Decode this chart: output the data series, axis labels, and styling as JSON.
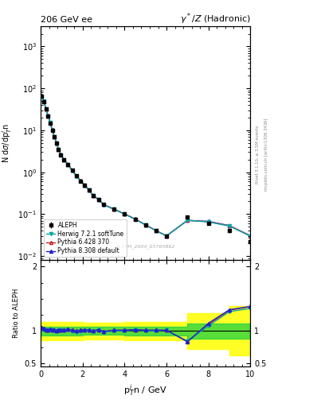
{
  "title_left": "206 GeV ee",
  "title_right": "γ*/Z (Hadronic)",
  "xlabel": "p$_T^i$n / GeV",
  "ylabel_main": "N dσ/dp$_T^i$n",
  "ylabel_ratio": "Ratio to ALEPH",
  "watermark": "ALEPH_2004_S5765862",
  "right_labels": [
    "mcplots.cern.ch [arXiv:1306.3436]",
    "Rivet 3.1.10, ≥ 3.5M events"
  ],
  "x_data": [
    0.05,
    0.15,
    0.25,
    0.35,
    0.45,
    0.55,
    0.65,
    0.75,
    0.85,
    0.95,
    1.1,
    1.3,
    1.5,
    1.7,
    1.9,
    2.1,
    2.3,
    2.5,
    2.75,
    3.0,
    3.5,
    4.0,
    4.5,
    5.0,
    5.5,
    6.0,
    7.0,
    8.0,
    9.0,
    10.0
  ],
  "aleph_y": [
    65.0,
    48.0,
    32.0,
    22.0,
    15.0,
    10.0,
    7.0,
    5.0,
    3.5,
    2.6,
    2.0,
    1.5,
    1.1,
    0.82,
    0.62,
    0.48,
    0.37,
    0.28,
    0.22,
    0.17,
    0.13,
    0.1,
    0.075,
    0.055,
    0.04,
    0.03,
    0.085,
    0.06,
    0.04,
    0.022
  ],
  "aleph_yerr": [
    2.0,
    2.0,
    1.5,
    1.0,
    0.8,
    0.5,
    0.3,
    0.2,
    0.15,
    0.12,
    0.09,
    0.07,
    0.05,
    0.04,
    0.03,
    0.025,
    0.02,
    0.015,
    0.012,
    0.01,
    0.008,
    0.006,
    0.005,
    0.004,
    0.003,
    0.003,
    0.006,
    0.005,
    0.004,
    0.003
  ],
  "herwig_ratio": [
    1.02,
    1.03,
    1.01,
    1.0,
    1.02,
    1.01,
    1.0,
    0.99,
    1.0,
    1.01,
    1.0,
    1.02,
    0.99,
    0.98,
    0.99,
    1.0,
    1.0,
    0.99,
    1.01,
    0.98,
    1.0,
    1.0,
    1.01,
    1.0,
    1.0,
    1.01,
    0.84,
    1.08,
    1.3,
    1.35
  ],
  "pythia6_ratio": [
    1.05,
    1.04,
    1.02,
    1.01,
    1.03,
    1.02,
    1.01,
    1.0,
    1.01,
    1.02,
    1.01,
    1.03,
    1.01,
    1.0,
    1.01,
    1.02,
    1.01,
    1.0,
    1.02,
    0.99,
    1.01,
    1.01,
    1.02,
    1.01,
    1.01,
    1.01,
    0.84,
    1.1,
    1.32,
    1.38
  ],
  "pythia8_ratio": [
    1.05,
    1.04,
    1.02,
    1.01,
    1.03,
    1.02,
    1.01,
    1.0,
    1.01,
    1.02,
    1.01,
    1.03,
    1.01,
    1.0,
    1.01,
    1.02,
    1.01,
    1.0,
    1.02,
    0.99,
    1.01,
    1.01,
    1.02,
    1.01,
    1.01,
    1.01,
    0.83,
    1.12,
    1.33,
    1.38
  ],
  "band_x": [
    0.0,
    0.5,
    1.0,
    1.5,
    2.0,
    3.0,
    4.0,
    5.0,
    6.0,
    7.0,
    8.0,
    9.0,
    10.0
  ],
  "band_green_lo": [
    0.93,
    0.93,
    0.93,
    0.93,
    0.94,
    0.94,
    0.93,
    0.93,
    0.93,
    0.88,
    0.88,
    0.88,
    0.88
  ],
  "band_green_hi": [
    1.07,
    1.07,
    1.07,
    1.07,
    1.06,
    1.06,
    1.07,
    1.07,
    1.07,
    1.12,
    1.12,
    1.12,
    1.12
  ],
  "band_yellow_lo": [
    0.86,
    0.86,
    0.86,
    0.86,
    0.87,
    0.87,
    0.86,
    0.86,
    0.86,
    0.72,
    0.72,
    0.62,
    0.62
  ],
  "band_yellow_hi": [
    1.14,
    1.14,
    1.14,
    1.14,
    1.13,
    1.13,
    1.14,
    1.14,
    1.14,
    1.28,
    1.28,
    1.38,
    1.38
  ],
  "herwig_color": "#00aaaa",
  "pythia6_color": "#cc2222",
  "pythia8_color": "#2222cc",
  "aleph_color": "#000000",
  "xlim": [
    0,
    10
  ],
  "ylim_main": [
    0.008,
    3000
  ],
  "ylim_ratio": [
    0.45,
    2.1
  ],
  "ratio_yticks": [
    0.5,
    1.0,
    2.0
  ],
  "ratio_yticklabels": [
    "0.5",
    "1",
    "2"
  ]
}
